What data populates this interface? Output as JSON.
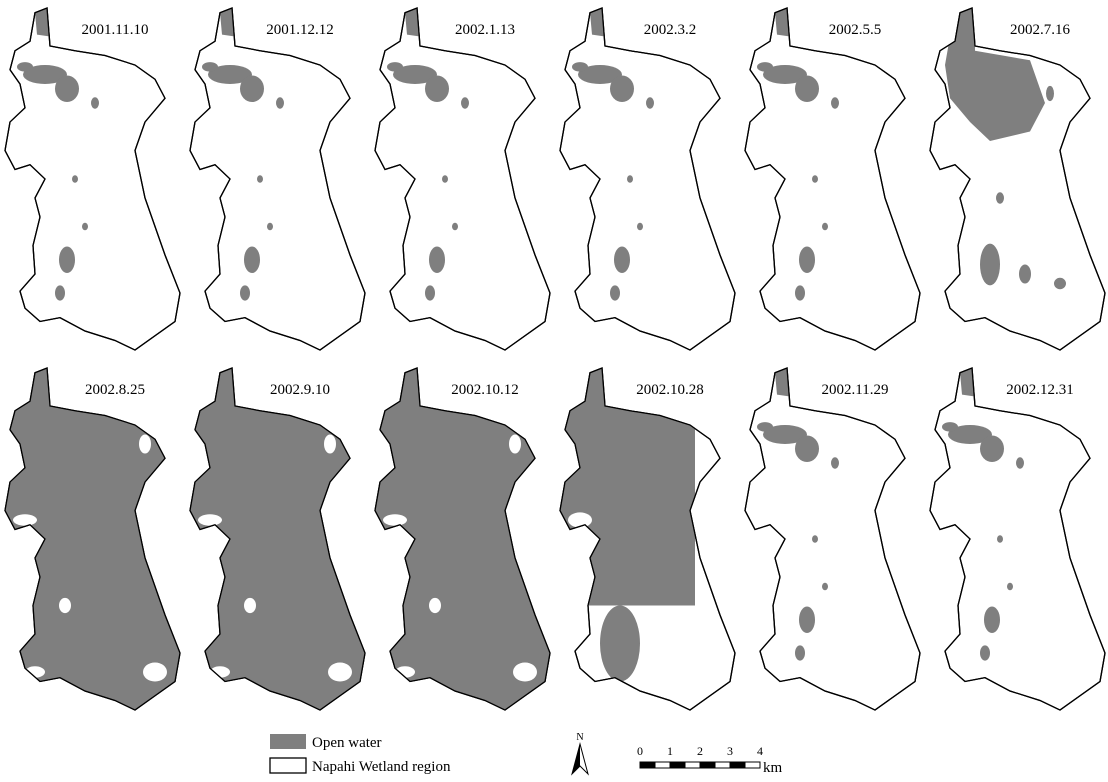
{
  "panels": [
    {
      "date": "2001.11.10"
    },
    {
      "date": "2001.12.12"
    },
    {
      "date": "2002.1.13"
    },
    {
      "date": "2002.3.2"
    },
    {
      "date": "2002.5.5"
    },
    {
      "date": "2002.7.16"
    },
    {
      "date": "2002.8.25"
    },
    {
      "date": "2002.9.10"
    },
    {
      "date": "2002.10.12"
    },
    {
      "date": "2002.10.28"
    },
    {
      "date": "2002.11.29"
    },
    {
      "date": "2002.12.31"
    }
  ],
  "legend": {
    "items": [
      {
        "label": "Open water"
      },
      {
        "label": "Napahi Wetland region"
      }
    ]
  },
  "north_arrow": {
    "label": "N"
  },
  "scale_bar": {
    "labels": [
      "0",
      "1",
      "2",
      "3",
      "4"
    ],
    "unit": "km"
  }
}
